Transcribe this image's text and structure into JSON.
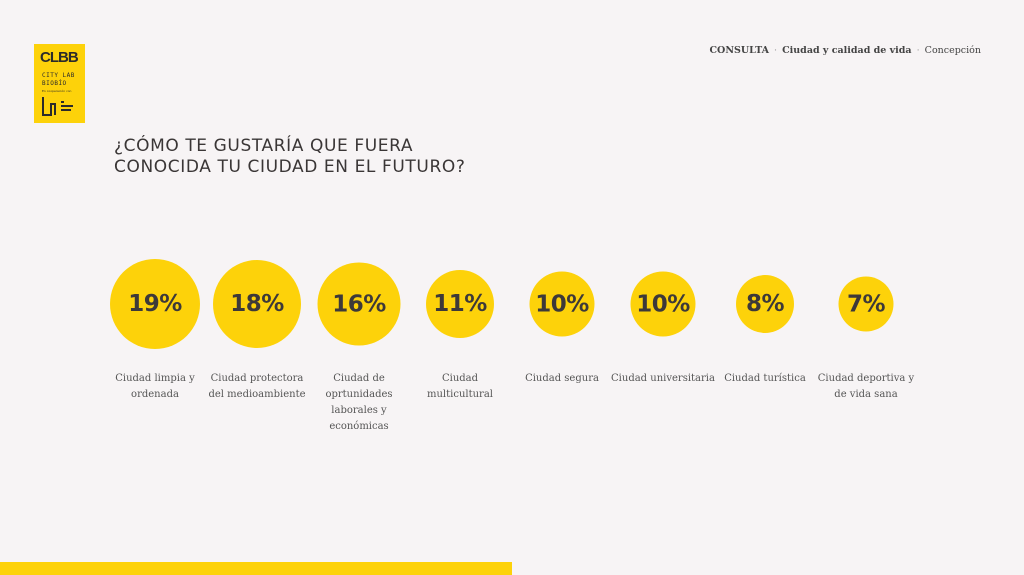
{
  "logo": {
    "mark": "CLBB",
    "line1": "CITY LAB",
    "line2": "BIOBÍO",
    "line3": "En cooperación con",
    "partner": "MIT Media Lab"
  },
  "breadcrumb": {
    "section": "CONSULTA",
    "topic": "Ciudad y calidad de vida",
    "place": "Concepción",
    "separator": "·"
  },
  "title": {
    "line1": "¿CÓMO TE GUSTARÍA QUE FUERA",
    "line2": "CONOCIDA TU CIUDAD EN EL FUTURO?"
  },
  "colors": {
    "accent": "#fdd20a",
    "background": "#f7f4f5",
    "text": "#3a3636"
  },
  "chart_data": {
    "type": "bubble",
    "categories": [
      "Ciudad limpia y ordenada",
      "Ciudad protectora del medioambiente",
      "Ciudad de oprtunidades laborales y económicas",
      "Ciudad multicultural",
      "Ciudad segura",
      "Ciudad universitaria",
      "Ciudad turística",
      "Ciudad deportiva y de vida sana"
    ],
    "values": [
      19,
      18,
      16,
      11,
      10,
      10,
      8,
      7
    ],
    "labels": [
      "19%",
      "18%",
      "16%",
      "11%",
      "10%",
      "10%",
      "8%",
      "7%"
    ],
    "unit": "%"
  }
}
